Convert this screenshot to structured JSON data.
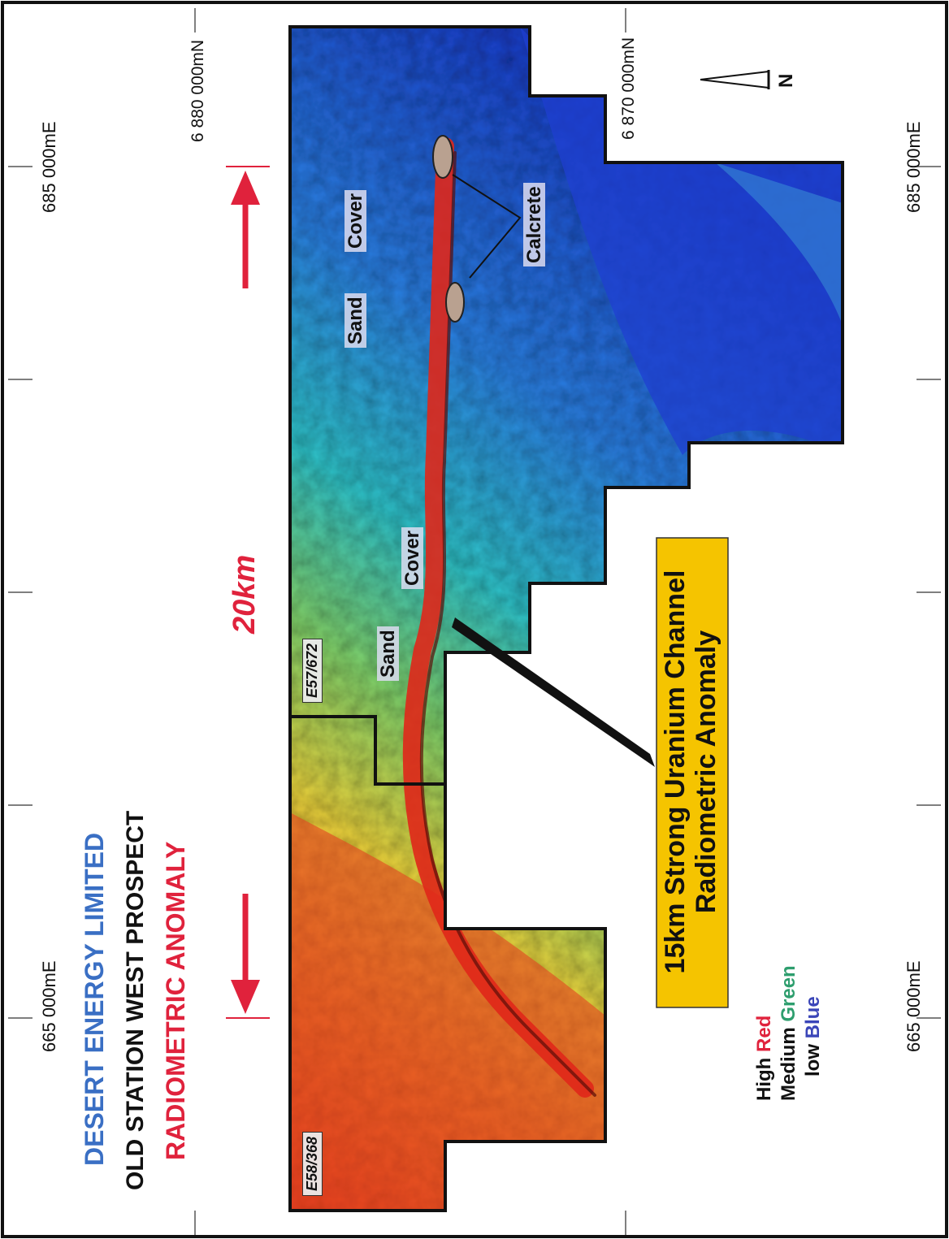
{
  "title": {
    "company": [
      "DESERT",
      "ENERGY",
      "LIMITED"
    ],
    "prospect": "OLD STATION WEST PROSPECT",
    "subject": "RADIOMETRIC ANOMALY"
  },
  "grid_labels": {
    "east_665_left": "665 000mE",
    "east_685_left": "685 000mE",
    "east_665_right": "665 000mE",
    "east_685_right": "685 000mE",
    "north_6880": "6 880 000mN",
    "north_6870": "6 870 000mN"
  },
  "north_arrow": "N",
  "scale_bar": "20km",
  "tenements": [
    "E58/368",
    "E57/672"
  ],
  "map_labels": {
    "sand": "Sand",
    "cover": "Cover",
    "calcrete": "Calcrete"
  },
  "callout": {
    "line1": "15km Strong Uranium Channel",
    "line2": "Radiometric Anomaly"
  },
  "legend": {
    "rows": [
      {
        "level": "High",
        "colour_word": "Red",
        "colour": "#e0223c"
      },
      {
        "level": "Medium",
        "colour_word": "Green",
        "colour": "#2e9e6e"
      },
      {
        "level": "low",
        "colour_word": "Blue",
        "colour": "#3a45b8"
      }
    ]
  },
  "colors": {
    "company_blue": "#3a6fc4",
    "title_red": "#e0223c",
    "arrow_red": "#e0223c",
    "callout_fill": "#f5c400"
  }
}
